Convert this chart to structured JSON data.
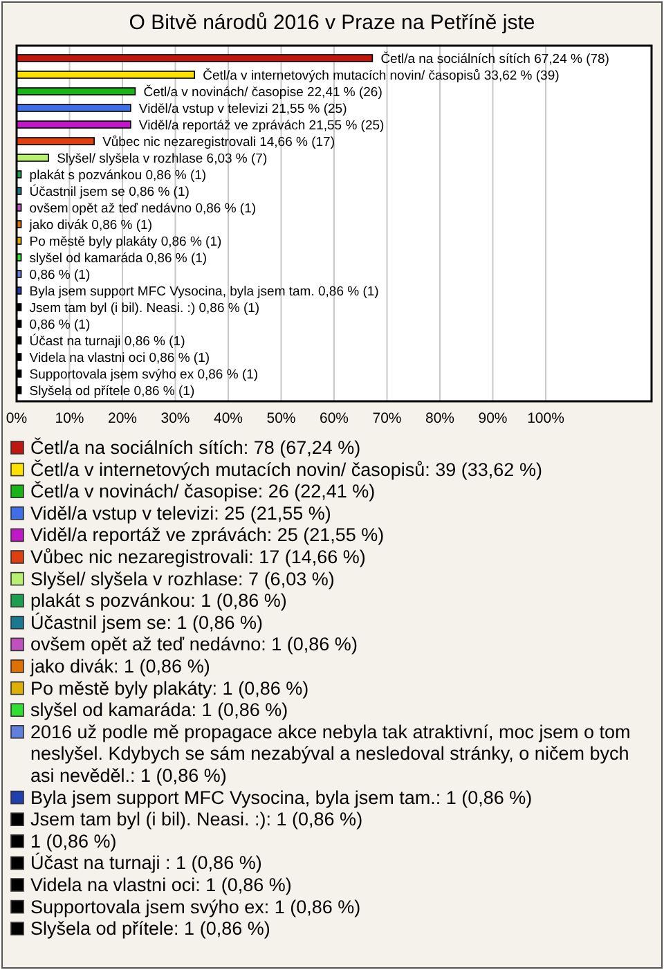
{
  "chart_data": {
    "type": "bar",
    "orientation": "horizontal",
    "title": "O Bitvě národů 2016 v Praze na Petříně jste",
    "categories": [
      "Četl/a na sociálních sítích",
      "Četl/a v internetových mutacích novin/ časopisů",
      "Četl/a v novinách/ časopise",
      "Viděl/a vstup v televizi",
      "Viděl/a reportáž ve zprávách",
      "Vůbec nic nezaregistrovali",
      "Slyšel/ slyšela v rozhlase",
      "plakát s pozvánkou",
      "Účastnil jsem se",
      "ovšem opět až teď nedávno",
      "jako divák",
      "Po městě byly plakáty",
      "slyšel od kamaráda",
      null,
      "Byla jsem support MFC Vysocina, byla jsem tam.",
      "Jsem tam byl (i bil). Neasi. :)",
      null,
      "Účast na turnaji",
      "Videla na vlastni oci",
      "Supportovala jsem svýho ex",
      "Slyšela od přítele"
    ],
    "values": [
      67.24,
      33.62,
      22.41,
      21.55,
      21.55,
      14.66,
      6.03,
      0.86,
      0.86,
      0.86,
      0.86,
      0.86,
      0.86,
      0.86,
      0.86,
      0.86,
      0.86,
      0.86,
      0.86,
      0.86,
      0.86
    ],
    "value_labels": [
      "67,24 % (78)",
      "33,62 % (39)",
      "22,41 % (26)",
      "21,55 % (25)",
      "21,55 % (25)",
      "14,66 % (17)",
      "6,03 % (7)",
      "0,86 % (1)",
      "0,86 % (1)",
      "0,86 % (1)",
      "0,86 % (1)",
      "0,86 % (1)",
      "0,86 % (1)",
      "0,86 % (1)",
      "0,86 % (1)",
      "0,86 % (1)",
      "0,86 % (1)",
      "0,86 % (1)",
      "0,86 % (1)",
      "0,86 % (1)",
      "0,86 % (1)"
    ],
    "colors": [
      "#c0180f",
      "#ffe000",
      "#18b418",
      "#3f6fe8",
      "#c018c8",
      "#e04010",
      "#b8f070",
      "#18a050",
      "#1a7890",
      "#c050c0",
      "#e07000",
      "#e0b000",
      "#30e030",
      "#6080e0",
      "#2040b0",
      "#000000",
      "#000000",
      "#000000",
      "#000000",
      "#000000",
      "#000000"
    ],
    "xlim": [
      0,
      120
    ],
    "xticks": [
      {
        "value": 0,
        "label": "0%"
      },
      {
        "value": 10,
        "label": "10%"
      },
      {
        "value": 20,
        "label": "20%"
      },
      {
        "value": 30,
        "label": "30%"
      },
      {
        "value": 40,
        "label": "40%"
      },
      {
        "value": 50,
        "label": "50%"
      },
      {
        "value": 60,
        "label": "60%"
      },
      {
        "value": 70,
        "label": "70%"
      },
      {
        "value": 80,
        "label": "80%"
      },
      {
        "value": 90,
        "label": "90%"
      },
      {
        "value": 100,
        "label": "100%"
      }
    ],
    "grid": "x",
    "annotations": [
      "Četl/a na sociálních sítích: 78 (67,24 %)",
      "Četl/a v internetových mutacích novin/ časopisů: 39 (33,62 %)",
      "Četl/a v novinách/ časopise: 26 (22,41 %)",
      "Viděl/a vstup v televizi: 25 (21,55 %)",
      "Viděl/a reportáž ve zprávách: 25 (21,55 %)",
      "Vůbec nic nezaregistrovali: 17 (14,66 %)",
      "Slyšel/ slyšela v rozhlase: 7 (6,03 %)",
      "plakát s pozvánkou: 1 (0,86 %)",
      "Účastnil jsem se: 1 (0,86 %)",
      "ovšem opět až teď nedávno: 1 (0,86 %)",
      "jako divák: 1 (0,86 %)",
      "Po městě byly plakáty: 1 (0,86 %)",
      "slyšel od kamaráda: 1 (0,86 %)",
      "2016 už podle mě propagace akce nebyla tak atraktivní, moc jsem o tom neslyšel. Kdybych se sám nezabýval a nesledoval stránky, o ničem bych asi nevěděl.: 1 (0,86 %)",
      "Byla jsem support MFC Vysocina, byla jsem tam.: 1 (0,86 %)",
      "Jsem tam byl (i bil). Neasi. :): 1 (0,86 %)",
      "1 (0,86 %)",
      "Účast na turnaji : 1 (0,86 %)",
      "Videla na vlastni oci: 1 (0,86 %)",
      "Supportovala jsem svýho ex: 1 (0,86 %)",
      "Slyšela od přítele: 1 (0,86 %)"
    ]
  }
}
